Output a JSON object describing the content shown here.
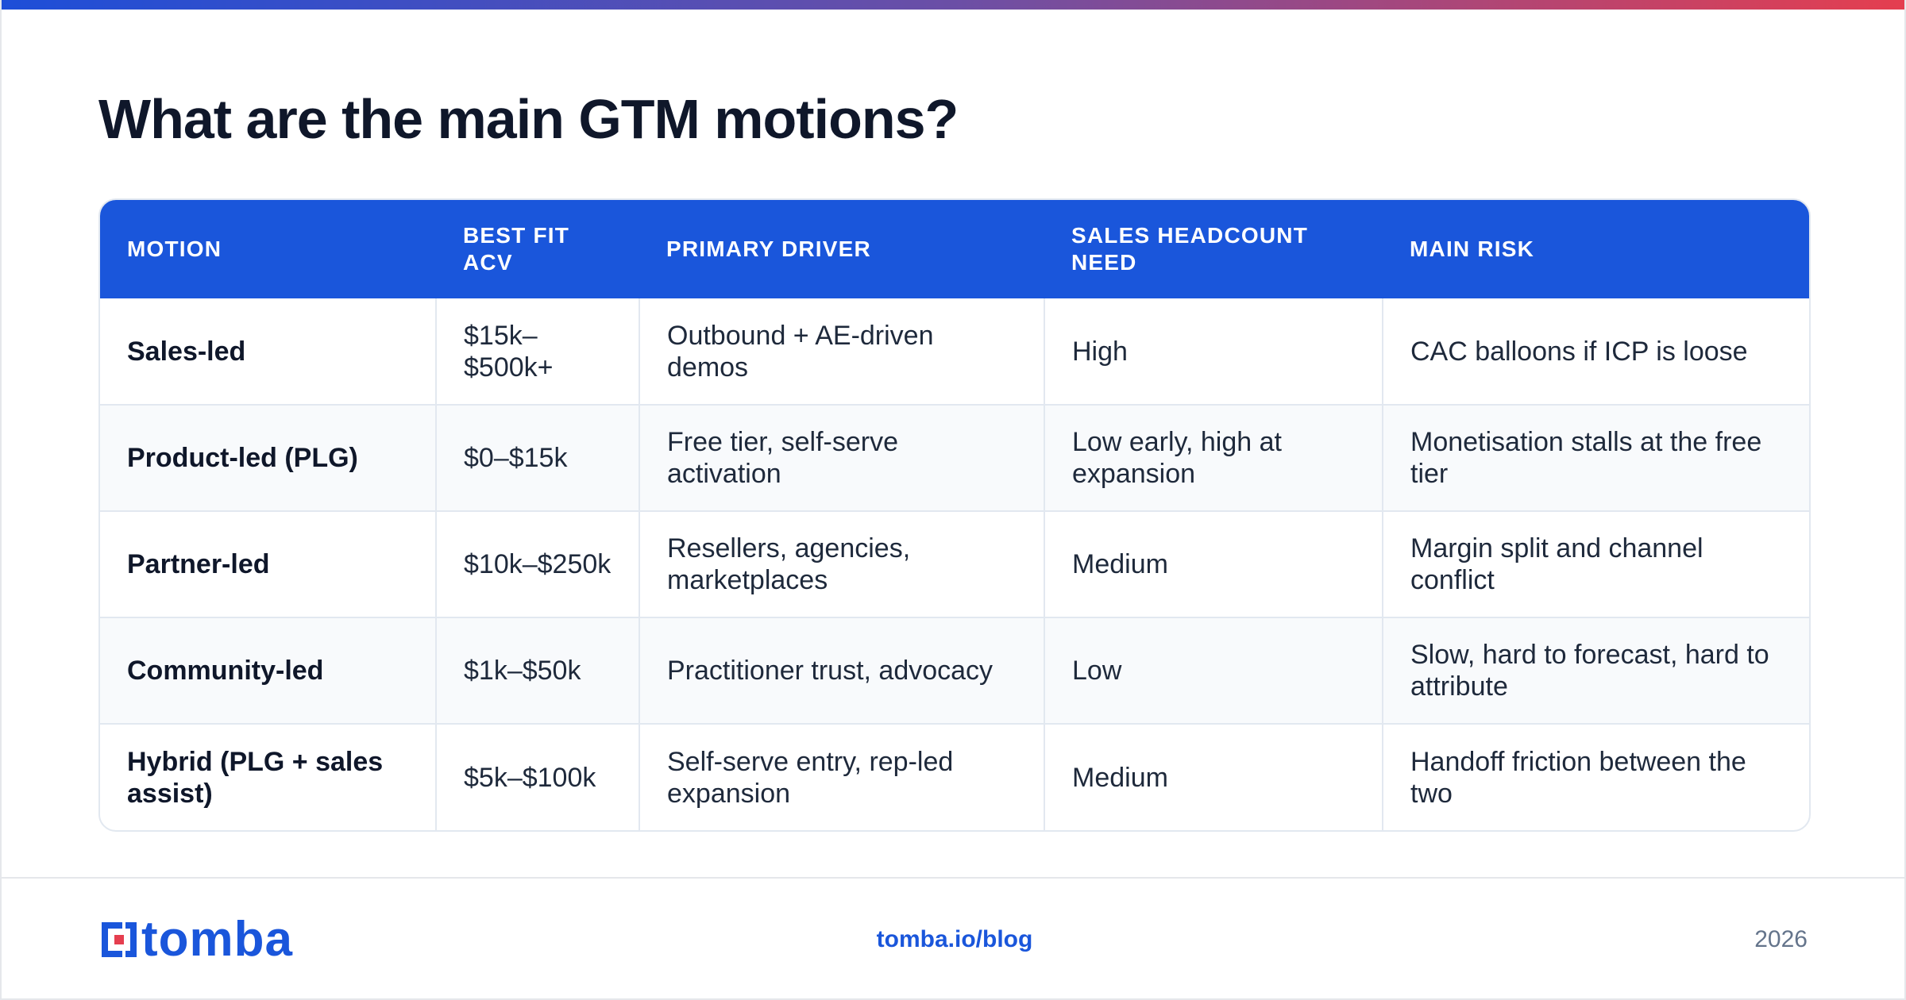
{
  "title": "What are the main GTM motions?",
  "table": {
    "headers": [
      "MOTION",
      "BEST FIT ACV",
      "PRIMARY DRIVER",
      "SALES HEADCOUNT NEED",
      "MAIN RISK"
    ],
    "rows": [
      [
        "Sales-led",
        "$15k–$500k+",
        "Outbound + AE-driven demos",
        "High",
        "CAC balloons if ICP is loose"
      ],
      [
        "Product-led (PLG)",
        "$0–$15k",
        "Free tier, self-serve activation",
        "Low early, high at expansion",
        "Monetisation stalls at the free tier"
      ],
      [
        "Partner-led",
        "$10k–$250k",
        "Resellers, agencies, marketplaces",
        "Medium",
        "Margin split and channel conflict"
      ],
      [
        "Community-led",
        "$1k–$50k",
        "Practitioner trust, advocacy",
        "Low",
        "Slow, hard to forecast, hard to attribute"
      ],
      [
        "Hybrid (PLG + sales assist)",
        "$5k–$100k",
        "Self-serve entry, rep-led expansion",
        "Medium",
        "Handoff friction between the two"
      ]
    ]
  },
  "footer": {
    "brand": "tomba",
    "url": "tomba.io/blog",
    "year": "2026"
  },
  "colors": {
    "accent": "#1a56db",
    "gradient_start": "#1d4ed8",
    "gradient_end": "#e53e4f",
    "logo_red": "#e53e4f"
  },
  "icons": {
    "logo": "tomba-logo-icon"
  }
}
